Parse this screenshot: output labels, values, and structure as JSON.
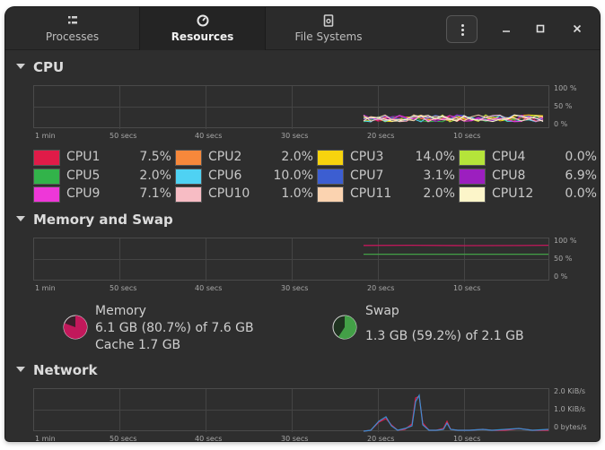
{
  "tabs": [
    {
      "label": "Processes",
      "icon": "processes-list-icon"
    },
    {
      "label": "Resources",
      "icon": "resources-gauge-icon",
      "active": true
    },
    {
      "label": "File Systems",
      "icon": "file-systems-disk-icon"
    }
  ],
  "window_controls": [
    "menu-icon",
    "minimize-icon",
    "maximize-icon",
    "close-icon"
  ],
  "sections": {
    "cpu": {
      "title": "CPU"
    },
    "memory": {
      "title": "Memory and Swap"
    },
    "network": {
      "title": "Network"
    }
  },
  "axis": {
    "x_ticks": [
      "1 min",
      "50 secs",
      "40 secs",
      "30 secs",
      "20 secs",
      "10 secs"
    ],
    "percent_ticks": [
      "100 %",
      "50 %",
      "0 %"
    ],
    "network_ticks": [
      "2.0 KiB/s",
      "1.0 KiB/s",
      "0 bytes/s"
    ]
  },
  "cpus": [
    {
      "name": "CPU1",
      "value": "7.5%",
      "color": "#e01b48"
    },
    {
      "name": "CPU2",
      "value": "2.0%",
      "color": "#f6883b"
    },
    {
      "name": "CPU3",
      "value": "14.0%",
      "color": "#f6d30e"
    },
    {
      "name": "CPU4",
      "value": "0.0%",
      "color": "#b5e43a"
    },
    {
      "name": "CPU5",
      "value": "2.0%",
      "color": "#32b34a"
    },
    {
      "name": "CPU6",
      "value": "10.0%",
      "color": "#4fd2f3"
    },
    {
      "name": "CPU7",
      "value": "3.1%",
      "color": "#3c5ed1"
    },
    {
      "name": "CPU8",
      "value": "6.9%",
      "color": "#9c1fbf"
    },
    {
      "name": "CPU9",
      "value": "7.1%",
      "color": "#ee37d8"
    },
    {
      "name": "CPU10",
      "value": "1.0%",
      "color": "#f7bcc4"
    },
    {
      "name": "CPU11",
      "value": "2.0%",
      "color": "#fbd3b0"
    },
    {
      "name": "CPU12",
      "value": "0.0%",
      "color": "#fcf5c9"
    }
  ],
  "memory": {
    "label": "Memory",
    "usage": "6.1 GB (80.7%) of 7.6 GB",
    "cache": "Cache 1.7 GB",
    "fraction": 0.807,
    "color": "#c2185b"
  },
  "swap": {
    "label": "Swap",
    "usage": "1.3 GB (59.2%) of 2.1 GB",
    "fraction": 0.592,
    "color": "#43a047"
  }
}
